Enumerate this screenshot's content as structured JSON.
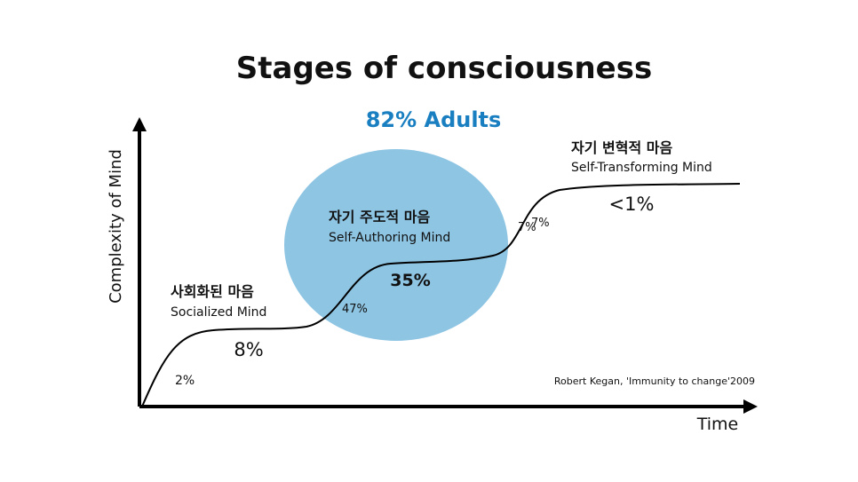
{
  "header": {
    "title": "Stages of consciousness",
    "highlight": "82% Adults"
  },
  "axes": {
    "y_label": "Complexity of Mind",
    "x_label": "Time"
  },
  "stages": [
    {
      "label_ko": "사회화된 마음",
      "label_en": "Socialized Mind"
    },
    {
      "label_ko": "자기 주도적 마음",
      "label_en": "Self-Authoring Mind"
    },
    {
      "label_ko": "자기 변혁적 마음",
      "label_en": "Self-Transforming Mind"
    }
  ],
  "percentages": [
    "2%",
    "8%",
    "47%",
    "35%",
    "7%",
    "7%",
    "<1%"
  ],
  "citation": "Robert Kegan, 'Immunity to change'2009"
}
